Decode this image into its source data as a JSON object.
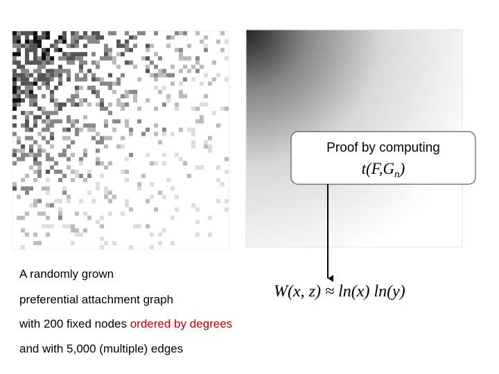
{
  "callout": {
    "heading": "Proof by computing",
    "formula_main": "t(F,G",
    "formula_sub": "n",
    "formula_close": ")"
  },
  "formula": "W(x, z) ≈ ln(x) ln(y)",
  "caption": {
    "line1": "A randomly grown",
    "line2": "preferential attachment graph",
    "line3_black": "with 200 fixed nodes ",
    "line3_red": "ordered by degrees",
    "line4": "and with 5,000 (multiple) edges"
  }
}
